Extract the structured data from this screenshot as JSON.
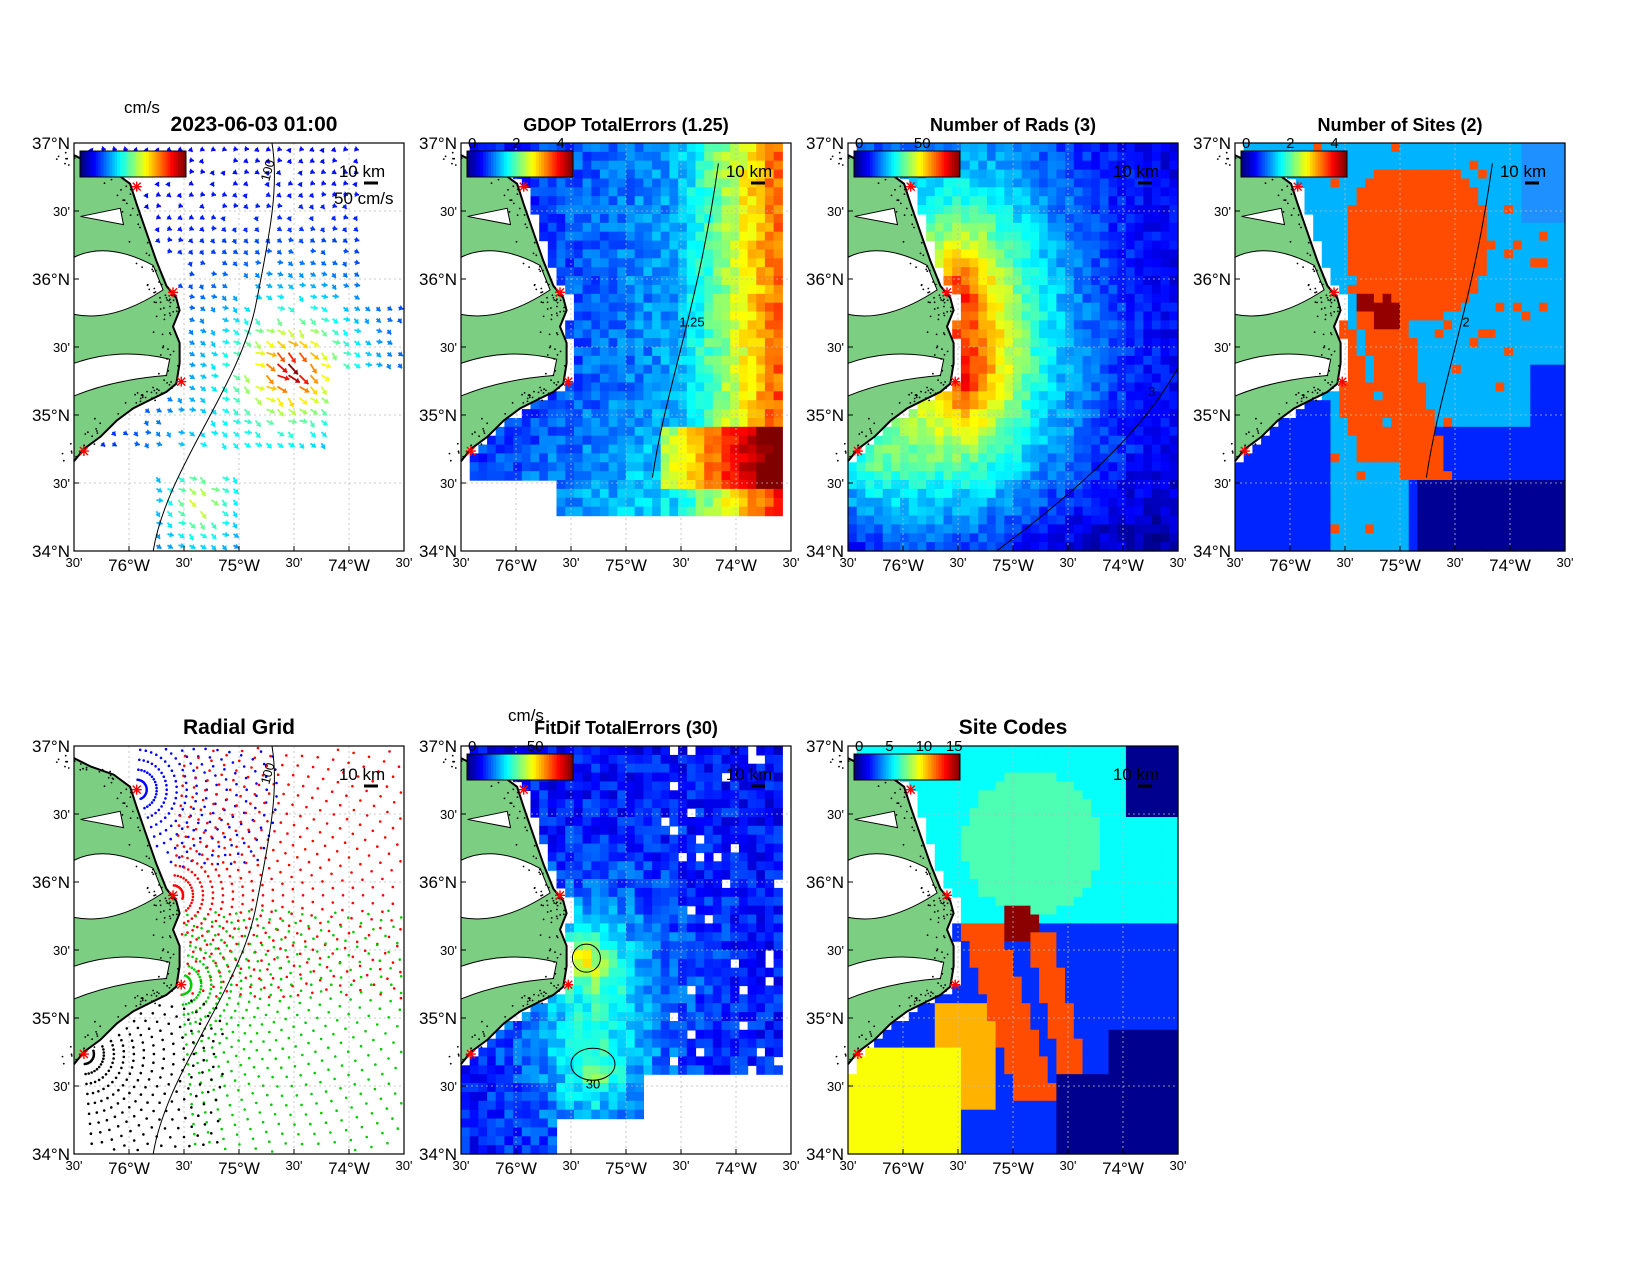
{
  "figure": {
    "timestamp": "2023-06-03 01:00",
    "unit_label": "cm/s",
    "vector_scale": "50 cm/s",
    "scale_bar": "10 km",
    "axis": {
      "lat_labels": [
        "37°N",
        "30'",
        "36°N",
        "30'",
        "35°N",
        "30'",
        "34°N"
      ],
      "lon_labels": [
        "30'",
        "76°W",
        "30'",
        "75°W",
        "30'",
        "74°W",
        "30'"
      ]
    },
    "colors": {
      "land": "#7ccf82",
      "coast": "#000000",
      "site_marker": "#ff0000",
      "grid": "#bbbbbb"
    },
    "panels": [
      {
        "id": "currents",
        "title": "",
        "colorbar_ticks": [],
        "contour": "100"
      },
      {
        "id": "gdop",
        "title": "GDOP TotalErrors (1.25)",
        "colorbar_ticks": [
          "0",
          "2",
          "4"
        ],
        "contour": "1.25"
      },
      {
        "id": "rads",
        "title": "Number of Rads (3)",
        "colorbar_ticks": [
          "0",
          "50"
        ],
        "contour": "3"
      },
      {
        "id": "sites",
        "title": "Number of Sites (2)",
        "colorbar_ticks": [
          "0",
          "2",
          "4"
        ],
        "contour": "2"
      },
      {
        "id": "radgrid",
        "title": "Radial Grid",
        "colorbar_ticks": [],
        "contour": "100"
      },
      {
        "id": "fitdif",
        "title": "FitDif TotalErrors (30)",
        "colorbar_ticks": [
          "0",
          "50"
        ],
        "contour": "30",
        "unit_label": "cm/s"
      },
      {
        "id": "sitecodes",
        "title": "Site Codes",
        "colorbar_ticks": [
          "0",
          "5",
          "10",
          "15"
        ],
        "contour": ""
      }
    ]
  }
}
